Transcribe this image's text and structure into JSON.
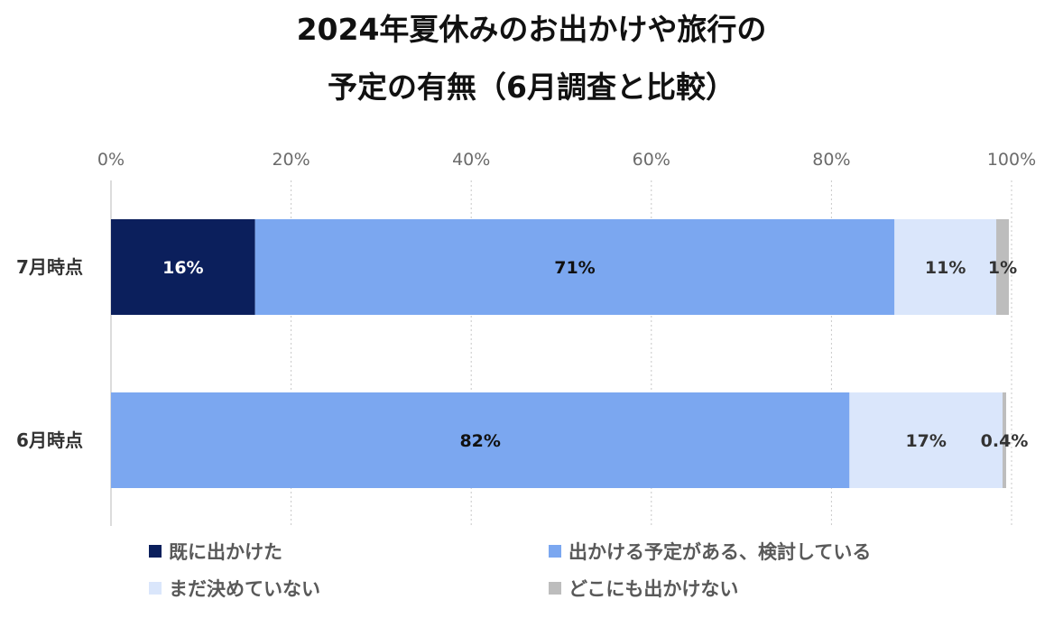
{
  "chart_data": {
    "type": "bar",
    "orientation": "horizontal",
    "stacked": true,
    "title_lines": [
      "2024年夏休みのお出かけや旅行の",
      "予定の有無（6月調査と比較）"
    ],
    "categories": [
      "7月時点",
      "6月時点"
    ],
    "xlim": [
      0,
      100
    ],
    "x_ticks": [
      "0%",
      "20%",
      "40%",
      "60%",
      "80%",
      "100%"
    ],
    "grid": "vertical-dotted",
    "legend_position": "bottom",
    "series": [
      {
        "name": "既に出かけた",
        "color": "#0b1f5c",
        "label_color": "#ffffff",
        "values": [
          16,
          0
        ],
        "labels": [
          "16%",
          ""
        ]
      },
      {
        "name": "出かける予定がある、検討している",
        "color": "#7ba7f0",
        "label_color": "#111111",
        "values": [
          71,
          82
        ],
        "labels": [
          "71%",
          "82%"
        ]
      },
      {
        "name": "まだ決めていない",
        "color": "#dae6fb",
        "label_color": "#333333",
        "values": [
          11.3,
          17
        ],
        "labels": [
          "11%",
          "17%"
        ]
      },
      {
        "name": "どこにも出かけない",
        "color": "#bdbdbd",
        "label_color": "#333333",
        "values": [
          1.4,
          0.4
        ],
        "labels": [
          "1%",
          "0.4%"
        ]
      }
    ]
  }
}
